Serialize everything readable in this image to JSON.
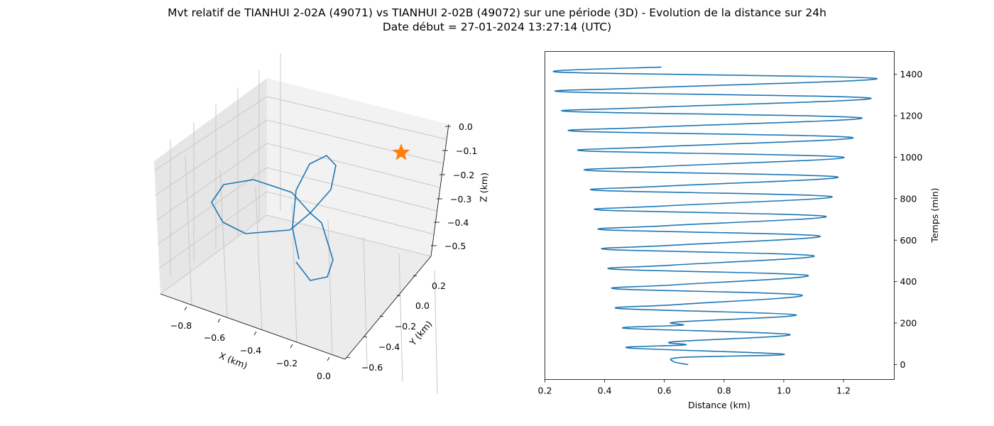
{
  "title_line1": "Mvt relatif de TIANHUI 2-02A (49071) vs TIANHUI 2-02B (49072) sur une période (3D) - Evolution de la distance sur 24h",
  "title_line2": "Date début = 27-01-2024 13:27:14 (UTC)",
  "colors": {
    "series": "#1f77b4",
    "marker": "#ff7f0e"
  },
  "chart_data": [
    {
      "type": "line",
      "projection": "3d",
      "xlabel": "X (km)",
      "ylabel": "Y (km)",
      "zlabel": "Z (km)",
      "x_ticks": [
        "−0.8",
        "−0.6",
        "−0.4",
        "−0.2",
        "0.0"
      ],
      "y_ticks": [
        "−0.6",
        "−0.4",
        "−0.2",
        "0.0",
        "0.2"
      ],
      "z_ticks": [
        "0.0",
        "−0.1",
        "−0.2",
        "−0.3",
        "−0.4",
        "−0.5"
      ],
      "xlim": [
        -0.9,
        0.0
      ],
      "ylim": [
        -0.65,
        0.3
      ],
      "zlim": [
        -0.55,
        0.0
      ],
      "grid": true,
      "marker": {
        "shape": "star",
        "x": 0.0,
        "y": 0.0,
        "z": -0.1
      }
    },
    {
      "type": "line",
      "xlabel": "Distance (km)",
      "ylabel": "Temps (min)",
      "x_ticks": [
        "0.2",
        "0.4",
        "0.6",
        "0.8",
        "1.0",
        "1.2"
      ],
      "y_ticks": [
        "0",
        "200",
        "400",
        "600",
        "800",
        "1000",
        "1200",
        "1400"
      ],
      "xlim": [
        0.2,
        1.37
      ],
      "ylim": [
        -72,
        1510
      ],
      "yaxis_position": "right",
      "series": [
        {
          "t_step_min": 1,
          "note_shape": "oscillating distance with ~96 min period",
          "points": [
            [
              0.68,
              0
            ],
            [
              0.63,
              15
            ],
            [
              0.66,
              35
            ],
            [
              1.0,
              50
            ],
            [
              0.48,
              80
            ],
            [
              0.67,
              95
            ],
            [
              0.63,
              110
            ],
            [
              1.02,
              145
            ],
            [
              0.47,
              175
            ],
            [
              0.66,
              190
            ],
            [
              0.64,
              205
            ],
            [
              1.04,
              240
            ],
            [
              0.45,
              270
            ],
            [
              0.65,
              290
            ],
            [
              1.06,
              335
            ],
            [
              0.44,
              365
            ],
            [
              0.64,
              385
            ],
            [
              1.08,
              430
            ],
            [
              0.43,
              460
            ],
            [
              0.63,
              480
            ],
            [
              1.1,
              525
            ],
            [
              0.41,
              555
            ],
            [
              0.62,
              575
            ],
            [
              1.12,
              620
            ],
            [
              0.4,
              650
            ],
            [
              0.61,
              670
            ],
            [
              1.14,
              715
            ],
            [
              0.39,
              745
            ],
            [
              0.6,
              765
            ],
            [
              1.16,
              810
            ],
            [
              0.38,
              840
            ],
            [
              0.59,
              860
            ],
            [
              1.18,
              905
            ],
            [
              0.36,
              935
            ],
            [
              0.58,
              955
            ],
            [
              1.2,
              1000
            ],
            [
              0.34,
              1030
            ],
            [
              0.57,
              1050
            ],
            [
              1.23,
              1095
            ],
            [
              0.31,
              1125
            ],
            [
              0.56,
              1145
            ],
            [
              1.26,
              1190
            ],
            [
              0.29,
              1220
            ],
            [
              0.55,
              1240
            ],
            [
              1.29,
              1285
            ],
            [
              0.27,
              1315
            ],
            [
              0.54,
              1335
            ],
            [
              1.31,
              1380
            ],
            [
              0.25,
              1410
            ],
            [
              0.59,
              1435
            ]
          ]
        }
      ]
    }
  ]
}
